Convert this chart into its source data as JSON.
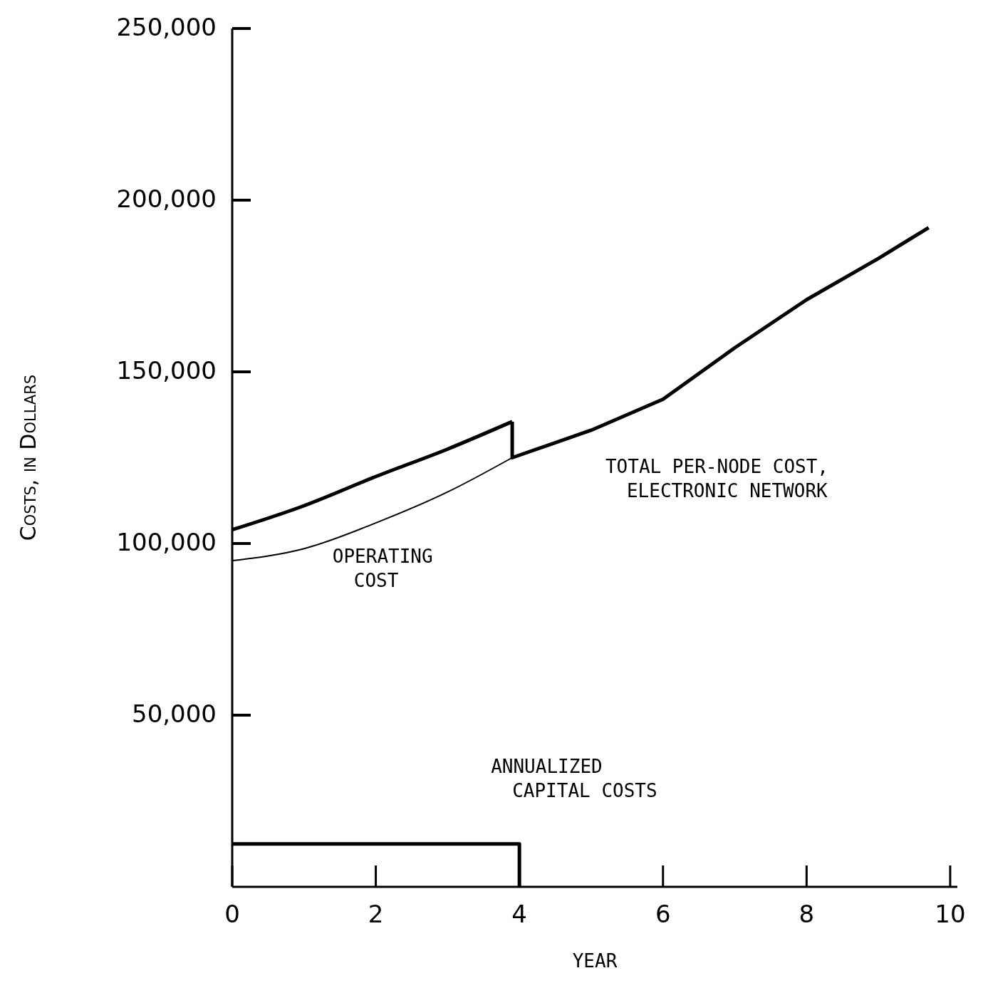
{
  "chart_data": {
    "type": "line",
    "xlabel": "YEAR",
    "ylabel": "Costs, in Dollars",
    "xlim": [
      0,
      10.1
    ],
    "ylim": [
      0,
      250000
    ],
    "xticks": [
      0,
      2,
      4,
      6,
      8,
      10
    ],
    "yticks": [
      {
        "value": 50000,
        "label": "50,000"
      },
      {
        "value": 100000,
        "label": "100,000"
      },
      {
        "value": 150000,
        "label": "150,000"
      },
      {
        "value": 200000,
        "label": "200,000"
      },
      {
        "value": 250000,
        "label": "250,000"
      }
    ],
    "grid": false,
    "marker": "none",
    "line_style": "solid",
    "series": [
      {
        "name": "TOTAL PER-NODE COST, ELECTRONIC NETWORK",
        "color": "#000000",
        "x": [
          0,
          1,
          2,
          3,
          3.9,
          3.9,
          5,
          6,
          7,
          8,
          9,
          9.7
        ],
        "values": [
          104000,
          111000,
          119500,
          127500,
          135500,
          125000,
          133000,
          142000,
          157000,
          171000,
          183000,
          192000
        ]
      },
      {
        "name": "OPERATING COST",
        "color": "#000000",
        "x": [
          0,
          1,
          2,
          3,
          3.9
        ],
        "values": [
          95000,
          98500,
          106000,
          115000,
          125000
        ]
      },
      {
        "name": "ANNUALIZED CAPITAL COSTS",
        "type": "step",
        "color": "#000000",
        "x": [
          0,
          4,
          4
        ],
        "values": [
          12500,
          12500,
          0
        ]
      }
    ]
  }
}
